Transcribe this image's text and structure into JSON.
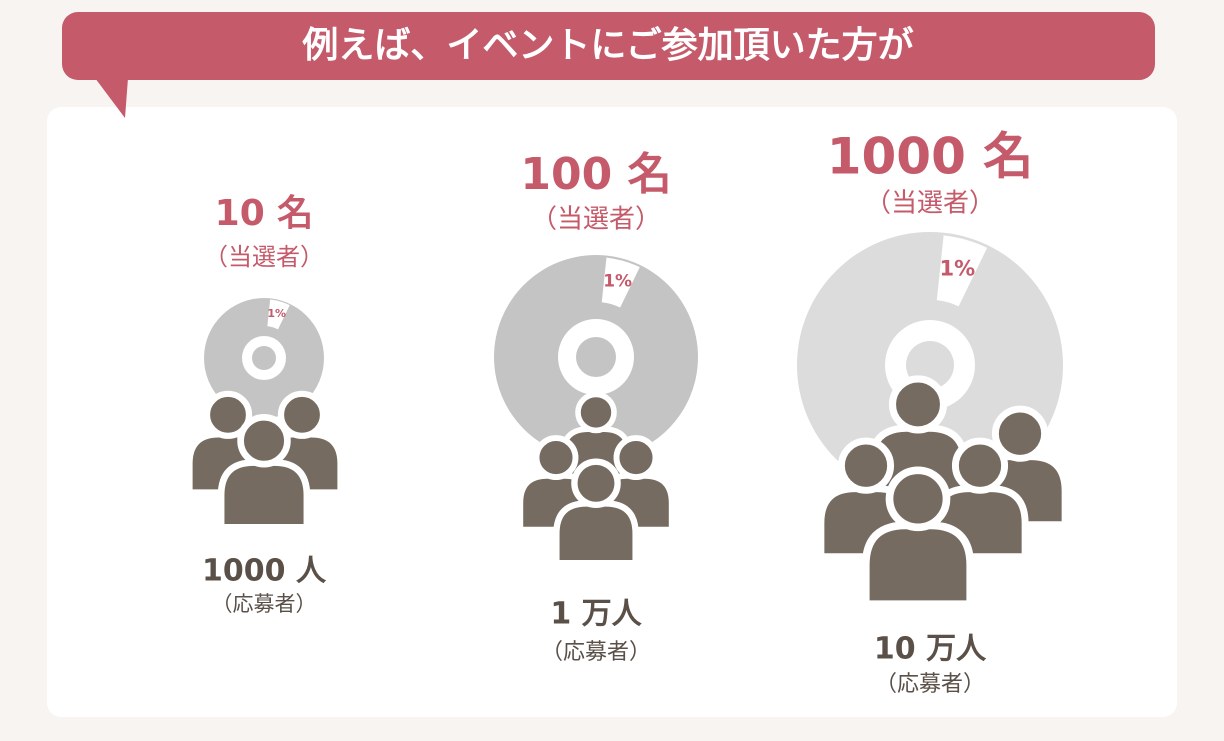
{
  "header": {
    "title": "例えば、イベントにご参加頂いた方が"
  },
  "groups": [
    {
      "winners": "10 名",
      "winners_note": "（当選者）",
      "share": "1%",
      "applicants": "1000 人",
      "applicants_note": "（応募者）"
    },
    {
      "winners": "100 名",
      "winners_note": "（当選者）",
      "share": "1%",
      "applicants": "1 万人",
      "applicants_note": "（応募者）"
    },
    {
      "winners": "1000 名",
      "winners_note": "（当選者）",
      "share": "1%",
      "applicants": "10 万人",
      "applicants_note": "（応募者）"
    }
  ]
}
